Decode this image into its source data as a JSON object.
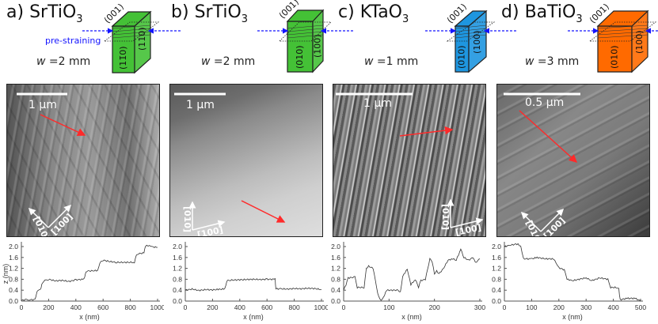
{
  "colors": {
    "strain_arrow": "#1515ff",
    "profile_arrow": "#ff2a2a",
    "block_a": "#44c136",
    "block_b": "#44c136",
    "block_c": "#1e96e0",
    "block_d": "#ff6a00"
  },
  "panels": [
    {
      "letter": "a)",
      "material": "SrTiO",
      "subscript": "3",
      "w_symbol": "w",
      "w_value": "=2 mm",
      "prestrain_label": "pre-straining",
      "faces": {
        "top": "(001)",
        "front": "(11̄0)",
        "side": "(110)"
      },
      "scale_bar": "1 µm",
      "dir1": "[010]",
      "dir2": "[100]"
    },
    {
      "letter": "b)",
      "material": "SrTiO",
      "subscript": "3",
      "w_symbol": "w",
      "w_value": "=2 mm",
      "faces": {
        "top": "(001)",
        "front": "(010)",
        "side": "(100)"
      },
      "scale_bar": "1 µm",
      "dir1": "[010]",
      "dir2": "[100]"
    },
    {
      "letter": "c)",
      "material": "KTaO",
      "subscript": "3",
      "w_symbol": "w",
      "w_value": "=1 mm",
      "faces": {
        "top": "(001)",
        "front": "(010)",
        "side": "(100)"
      },
      "scale_bar": "1 µm",
      "dir1": "[010]",
      "dir2": "[100]"
    },
    {
      "letter": "d)",
      "material": "BaTiO",
      "subscript": "3",
      "w_symbol": "w",
      "w_value": "=3 mm",
      "faces": {
        "top": "(001)",
        "front": "(010)",
        "side": "(100)"
      },
      "scale_bar": "0.5 µm",
      "dir1": "[010]",
      "dir2": "[100]"
    }
  ],
  "chart_data": [
    {
      "type": "line",
      "xlabel": "x (nm)",
      "ylabel": "z (nm)",
      "xlim": [
        0,
        1000
      ],
      "ylim": [
        0,
        2.0
      ],
      "xticks": [
        "0",
        "200",
        "400",
        "600",
        "800",
        "1000"
      ],
      "yticks": [
        "0.0",
        "0.4",
        "0.8",
        "1.2",
        "1.6",
        "2.0"
      ],
      "x": [
        0,
        30,
        60,
        100,
        110,
        120,
        140,
        150,
        165,
        200,
        250,
        300,
        350,
        400,
        460,
        470,
        480,
        560,
        575,
        600,
        650,
        700,
        760,
        830,
        845,
        860,
        900,
        910,
        930,
        960,
        1000
      ],
      "y": [
        0.02,
        0.06,
        0.05,
        0.05,
        0.25,
        0.4,
        0.42,
        0.6,
        0.75,
        0.8,
        0.74,
        0.76,
        0.72,
        0.78,
        0.8,
        1.0,
        1.1,
        1.12,
        1.4,
        1.5,
        1.45,
        1.42,
        1.42,
        1.42,
        1.7,
        1.74,
        1.76,
        2.02,
        2.04,
        1.99,
        1.97
      ]
    },
    {
      "type": "line",
      "xlabel": "x (nm)",
      "ylabel": "",
      "xlim": [
        0,
        1000
      ],
      "ylim": [
        0,
        2.0
      ],
      "xticks": [
        "0",
        "200",
        "400",
        "600",
        "800",
        "1000"
      ],
      "yticks": [
        "0.0",
        "0.4",
        "0.8",
        "1.2",
        "1.6",
        "2.0"
      ],
      "x": [
        0,
        50,
        100,
        150,
        200,
        250,
        290,
        305,
        350,
        400,
        450,
        500,
        550,
        600,
        660,
        665,
        700,
        750,
        800,
        850,
        900,
        950,
        1000
      ],
      "y": [
        0.4,
        0.44,
        0.39,
        0.42,
        0.41,
        0.43,
        0.45,
        0.75,
        0.77,
        0.78,
        0.79,
        0.8,
        0.79,
        0.8,
        0.8,
        0.45,
        0.45,
        0.44,
        0.46,
        0.45,
        0.47,
        0.46,
        0.42
      ]
    },
    {
      "type": "line",
      "xlabel": "x (nm)",
      "ylabel": "",
      "xlim": [
        0,
        300
      ],
      "ylim": [
        0,
        2.0
      ],
      "xticks": [
        "0",
        "100",
        "200",
        "300"
      ],
      "yticks": [
        "0.0",
        "0.4",
        "0.8",
        "1.2",
        "1.6",
        "2.0"
      ],
      "x": [
        0,
        5,
        10,
        25,
        30,
        45,
        50,
        55,
        65,
        75,
        80,
        85,
        95,
        120,
        125,
        130,
        140,
        148,
        158,
        165,
        170,
        180,
        190,
        195,
        200,
        205,
        210,
        220,
        230,
        240,
        248,
        258,
        265,
        275,
        285,
        290,
        300
      ],
      "y": [
        0.4,
        0.6,
        0.85,
        0.88,
        0.5,
        0.5,
        1.2,
        1.28,
        1.2,
        0.3,
        0.05,
        0.05,
        0.4,
        0.4,
        0.32,
        0.9,
        1.18,
        0.6,
        0.8,
        0.5,
        0.75,
        0.8,
        1.55,
        1.45,
        1.0,
        1.1,
        1.0,
        1.2,
        1.5,
        1.55,
        1.5,
        1.9,
        1.6,
        1.5,
        1.6,
        1.4,
        1.55
      ]
    },
    {
      "type": "line",
      "xlabel": "x (nm)",
      "ylabel": "",
      "xlim": [
        0,
        500
      ],
      "ylim": [
        0,
        2.0
      ],
      "xticks": [
        "0",
        "100",
        "200",
        "300",
        "400",
        "500"
      ],
      "yticks": [
        "0.0",
        "0.4",
        "0.8",
        "1.2",
        "1.6",
        "2.0"
      ],
      "x": [
        0,
        20,
        50,
        60,
        70,
        100,
        120,
        150,
        180,
        190,
        200,
        220,
        230,
        250,
        275,
        300,
        320,
        350,
        380,
        390,
        410,
        420,
        425,
        450,
        480,
        500
      ],
      "y": [
        2.0,
        2.05,
        2.1,
        2.0,
        1.55,
        1.55,
        1.6,
        1.55,
        1.55,
        1.4,
        1.22,
        1.15,
        0.8,
        0.75,
        0.8,
        0.85,
        0.75,
        0.85,
        0.8,
        0.5,
        0.5,
        0.45,
        0.05,
        0.1,
        0.1,
        0.0
      ]
    }
  ]
}
